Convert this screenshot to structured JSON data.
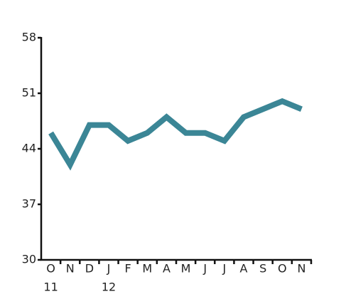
{
  "chart_data": {
    "type": "line",
    "categories": [
      "O",
      "N",
      "D",
      "J",
      "F",
      "M",
      "A",
      "M",
      "J",
      "J",
      "A",
      "S",
      "O",
      "N"
    ],
    "category_years": [
      "11",
      null,
      null,
      "12",
      null,
      null,
      null,
      null,
      null,
      null,
      null,
      null,
      null,
      null
    ],
    "series": [
      {
        "color": "#3b8696",
        "values": [
          46,
          42,
          47,
          47,
          45,
          46,
          48,
          46,
          46,
          45,
          48,
          49,
          50,
          49
        ]
      }
    ],
    "ylim": [
      30,
      58
    ],
    "yticks": [
      30,
      37,
      44,
      51,
      58
    ]
  }
}
